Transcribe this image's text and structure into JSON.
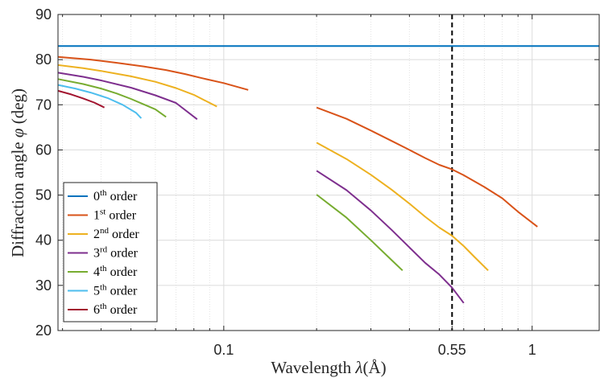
{
  "chart_data": {
    "type": "line",
    "xscale": "log",
    "xlim": [
      0.029,
      1.65
    ],
    "ylim": [
      20,
      90
    ],
    "xticks": [
      {
        "value": 0.1,
        "label": "0.1"
      },
      {
        "value": 0.55,
        "label": "0.55"
      },
      {
        "value": 1,
        "label": "1"
      }
    ],
    "yticks": [
      {
        "value": 20,
        "label": "20"
      },
      {
        "value": 30,
        "label": "30"
      },
      {
        "value": 40,
        "label": "40"
      },
      {
        "value": 50,
        "label": "50"
      },
      {
        "value": 60,
        "label": "60"
      },
      {
        "value": 70,
        "label": "70"
      },
      {
        "value": 80,
        "label": "80"
      },
      {
        "value": 90,
        "label": "90"
      }
    ],
    "xlabel": {
      "text": "Wavelength ",
      "symbol": "λ",
      "unit": "(Å)"
    },
    "ylabel": {
      "text": "Diffraction angle ",
      "symbol": "φ",
      "unit": " (deg)"
    },
    "grid": true,
    "vline": {
      "x": 0.55,
      "style": "dashed",
      "color": "#000000"
    },
    "legend": {
      "placement": "bottom-left"
    },
    "series": [
      {
        "name": "0",
        "sup": "th",
        "suffix": " order",
        "color": "#0072BD",
        "segments": [
          [
            [
              0.029,
              83
            ],
            [
              1.65,
              83
            ]
          ]
        ]
      },
      {
        "name": "1",
        "sup": "st",
        "suffix": " order",
        "color": "#D95319",
        "segments": [
          [
            [
              0.029,
              80.6
            ],
            [
              0.037,
              80.0
            ],
            [
              0.045,
              79.3
            ],
            [
              0.055,
              78.5
            ],
            [
              0.065,
              77.7
            ],
            [
              0.075,
              76.8
            ],
            [
              0.085,
              75.9
            ],
            [
              0.1,
              74.8
            ],
            [
              0.12,
              73.3
            ]
          ],
          [
            [
              0.2,
              69.4
            ],
            [
              0.25,
              66.9
            ],
            [
              0.3,
              64.3
            ],
            [
              0.35,
              62.0
            ],
            [
              0.4,
              60.0
            ],
            [
              0.45,
              58.2
            ],
            [
              0.5,
              56.7
            ],
            [
              0.55,
              55.7
            ],
            [
              0.6,
              54.4
            ],
            [
              0.7,
              51.8
            ],
            [
              0.8,
              49.3
            ],
            [
              0.9,
              46.3
            ],
            [
              1.04,
              43.0
            ]
          ]
        ]
      },
      {
        "name": "2",
        "sup": "nd",
        "suffix": " order",
        "color": "#EDB120",
        "segments": [
          [
            [
              0.029,
              78.8
            ],
            [
              0.035,
              78.1
            ],
            [
              0.04,
              77.5
            ],
            [
              0.05,
              76.3
            ],
            [
              0.06,
              75.1
            ],
            [
              0.07,
              73.7
            ],
            [
              0.08,
              72.2
            ],
            [
              0.095,
              69.6
            ]
          ],
          [
            [
              0.2,
              61.6
            ],
            [
              0.25,
              58.0
            ],
            [
              0.3,
              54.5
            ],
            [
              0.35,
              51.2
            ],
            [
              0.4,
              48.1
            ],
            [
              0.45,
              45.2
            ],
            [
              0.5,
              42.8
            ],
            [
              0.55,
              41.0
            ],
            [
              0.6,
              38.7
            ],
            [
              0.65,
              36.3
            ],
            [
              0.72,
              33.3
            ]
          ]
        ]
      },
      {
        "name": "3",
        "sup": "rd",
        "suffix": " order",
        "color": "#7E2F8E",
        "segments": [
          [
            [
              0.029,
              77.1
            ],
            [
              0.035,
              76.2
            ],
            [
              0.04,
              75.4
            ],
            [
              0.05,
              73.8
            ],
            [
              0.06,
              72.1
            ],
            [
              0.07,
              70.4
            ],
            [
              0.082,
              66.8
            ]
          ],
          [
            [
              0.2,
              55.4
            ],
            [
              0.25,
              51.1
            ],
            [
              0.3,
              46.6
            ],
            [
              0.35,
              42.3
            ],
            [
              0.4,
              38.4
            ],
            [
              0.45,
              35.0
            ],
            [
              0.5,
              32.4
            ],
            [
              0.55,
              29.5
            ],
            [
              0.6,
              26.1
            ]
          ]
        ]
      },
      {
        "name": "4",
        "sup": "th",
        "suffix": " order",
        "color": "#77AC30",
        "segments": [
          [
            [
              0.029,
              75.7
            ],
            [
              0.035,
              74.6
            ],
            [
              0.04,
              73.6
            ],
            [
              0.045,
              72.5
            ],
            [
              0.05,
              71.3
            ],
            [
              0.06,
              69.0
            ],
            [
              0.065,
              67.3
            ]
          ],
          [
            [
              0.2,
              50.1
            ],
            [
              0.25,
              45.0
            ],
            [
              0.3,
              40.0
            ],
            [
              0.35,
              35.6
            ],
            [
              0.38,
              33.3
            ]
          ]
        ]
      },
      {
        "name": "5",
        "sup": "th",
        "suffix": " order",
        "color": "#4DBEEE",
        "segments": [
          [
            [
              0.029,
              74.4
            ],
            [
              0.033,
              73.6
            ],
            [
              0.037,
              72.7
            ],
            [
              0.042,
              71.5
            ],
            [
              0.047,
              70.0
            ],
            [
              0.052,
              68.2
            ],
            [
              0.054,
              67.0
            ]
          ]
        ]
      },
      {
        "name": "6",
        "sup": "th",
        "suffix": " order",
        "color": "#A2142F",
        "segments": [
          [
            [
              0.029,
              73.1
            ],
            [
              0.032,
              72.3
            ],
            [
              0.035,
              71.4
            ],
            [
              0.038,
              70.5
            ],
            [
              0.041,
              69.4
            ]
          ]
        ]
      }
    ]
  }
}
